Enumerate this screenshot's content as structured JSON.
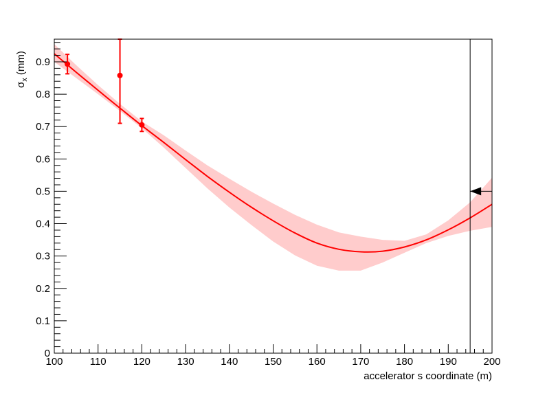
{
  "chart_data": {
    "type": "line",
    "xlabel": "accelerator s coordinate (m)",
    "ylabel": "σ",
    "ylabel_sub": "x",
    "ylabel_unit": " (mm)",
    "xlim": [
      100,
      200
    ],
    "ylim": [
      0,
      0.97
    ],
    "xticks": [
      "100",
      "110",
      "120",
      "130",
      "140",
      "150",
      "160",
      "170",
      "180",
      "190",
      "200"
    ],
    "yticks": [
      "0",
      "0.1",
      "0.2",
      "0.3",
      "0.4",
      "0.5",
      "0.6",
      "0.7",
      "0.8",
      "0.9"
    ],
    "line_color": "#ff0000",
    "band_color": "#ffcccc",
    "fit_curve": {
      "x": [
        100,
        105,
        110,
        115,
        120,
        125,
        130,
        135,
        140,
        145,
        150,
        155,
        160,
        165,
        170,
        175,
        180,
        185,
        190,
        195,
        200
      ],
      "y": [
        0.925,
        0.868,
        0.812,
        0.757,
        0.703,
        0.651,
        0.598,
        0.546,
        0.497,
        0.451,
        0.409,
        0.371,
        0.34,
        0.321,
        0.313,
        0.315,
        0.328,
        0.35,
        0.381,
        0.418,
        0.46
      ]
    },
    "error_band": {
      "x": [
        100,
        105,
        110,
        115,
        120,
        125,
        130,
        135,
        140,
        145,
        150,
        155,
        160,
        165,
        170,
        175,
        180,
        185,
        190,
        195,
        200
      ],
      "lower": [
        0.9,
        0.85,
        0.8,
        0.748,
        0.695,
        0.635,
        0.572,
        0.509,
        0.45,
        0.396,
        0.345,
        0.302,
        0.27,
        0.255,
        0.255,
        0.28,
        0.31,
        0.34,
        0.362,
        0.378,
        0.39
      ],
      "upper": [
        0.955,
        0.89,
        0.828,
        0.77,
        0.716,
        0.673,
        0.626,
        0.58,
        0.539,
        0.499,
        0.462,
        0.427,
        0.397,
        0.373,
        0.36,
        0.35,
        0.347,
        0.367,
        0.41,
        0.466,
        0.542
      ]
    },
    "measurements": [
      {
        "x": 103,
        "y": 0.893,
        "err": 0.03
      },
      {
        "x": 115,
        "y": 0.858,
        "err": 0.148
      },
      {
        "x": 120,
        "y": 0.705,
        "err": 0.02
      }
    ],
    "marker": {
      "x": 195,
      "y": 0.5
    }
  }
}
